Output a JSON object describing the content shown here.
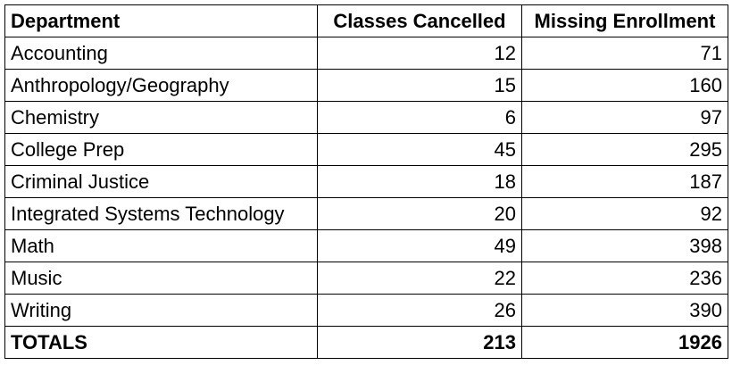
{
  "table": {
    "headers": [
      "Department",
      "Classes Cancelled",
      "Missing Enrollment"
    ],
    "rows": [
      {
        "department": "Accounting",
        "classes_cancelled": "12",
        "missing_enrollment": "71"
      },
      {
        "department": "Anthropology/Geography",
        "classes_cancelled": "15",
        "missing_enrollment": "160"
      },
      {
        "department": "Chemistry",
        "classes_cancelled": "6",
        "missing_enrollment": "97"
      },
      {
        "department": "College Prep",
        "classes_cancelled": "45",
        "missing_enrollment": "295"
      },
      {
        "department": "Criminal Justice",
        "classes_cancelled": "18",
        "missing_enrollment": "187"
      },
      {
        "department": "Integrated Systems Technology",
        "classes_cancelled": "20",
        "missing_enrollment": "92"
      },
      {
        "department": "Math",
        "classes_cancelled": "49",
        "missing_enrollment": "398"
      },
      {
        "department": "Music",
        "classes_cancelled": "22",
        "missing_enrollment": "236"
      },
      {
        "department": "Writing",
        "classes_cancelled": "26",
        "missing_enrollment": "390"
      }
    ],
    "totals": {
      "label": "TOTALS",
      "classes_cancelled": "213",
      "missing_enrollment": "1926"
    }
  }
}
